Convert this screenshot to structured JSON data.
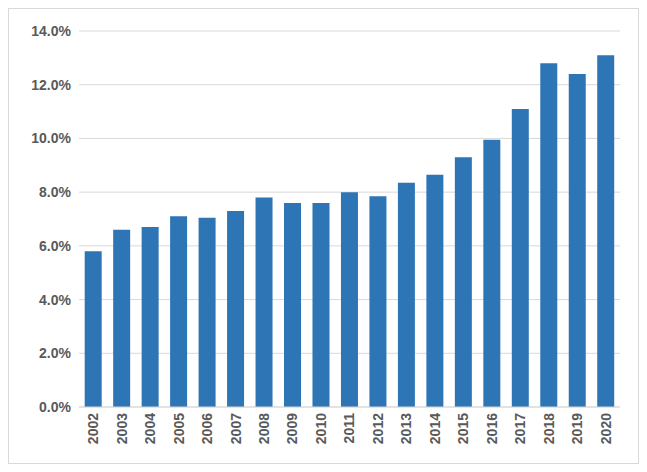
{
  "chart_data": {
    "type": "bar",
    "categories": [
      "2002",
      "2003",
      "2004",
      "2005",
      "2006",
      "2007",
      "2008",
      "2009",
      "2010",
      "2011",
      "2012",
      "2013",
      "2014",
      "2015",
      "2016",
      "2017",
      "2018",
      "2019",
      "2020"
    ],
    "values": [
      5.8,
      6.6,
      6.7,
      7.1,
      7.05,
      7.3,
      7.8,
      7.6,
      7.6,
      8.0,
      7.85,
      8.35,
      8.65,
      9.3,
      9.95,
      11.1,
      12.8,
      12.4,
      13.1
    ],
    "color": "#2e75b6",
    "ylim": [
      0,
      14
    ],
    "yticks": [
      {
        "value": 0,
        "label": "0.0%"
      },
      {
        "value": 2,
        "label": "2.0%"
      },
      {
        "value": 4,
        "label": "4.0%"
      },
      {
        "value": 6,
        "label": "6.0%"
      },
      {
        "value": 8,
        "label": "8.0%"
      },
      {
        "value": 10,
        "label": "10.0%"
      },
      {
        "value": 12,
        "label": "12.0%"
      },
      {
        "value": 14,
        "label": "14.0%"
      }
    ],
    "grid": true
  }
}
